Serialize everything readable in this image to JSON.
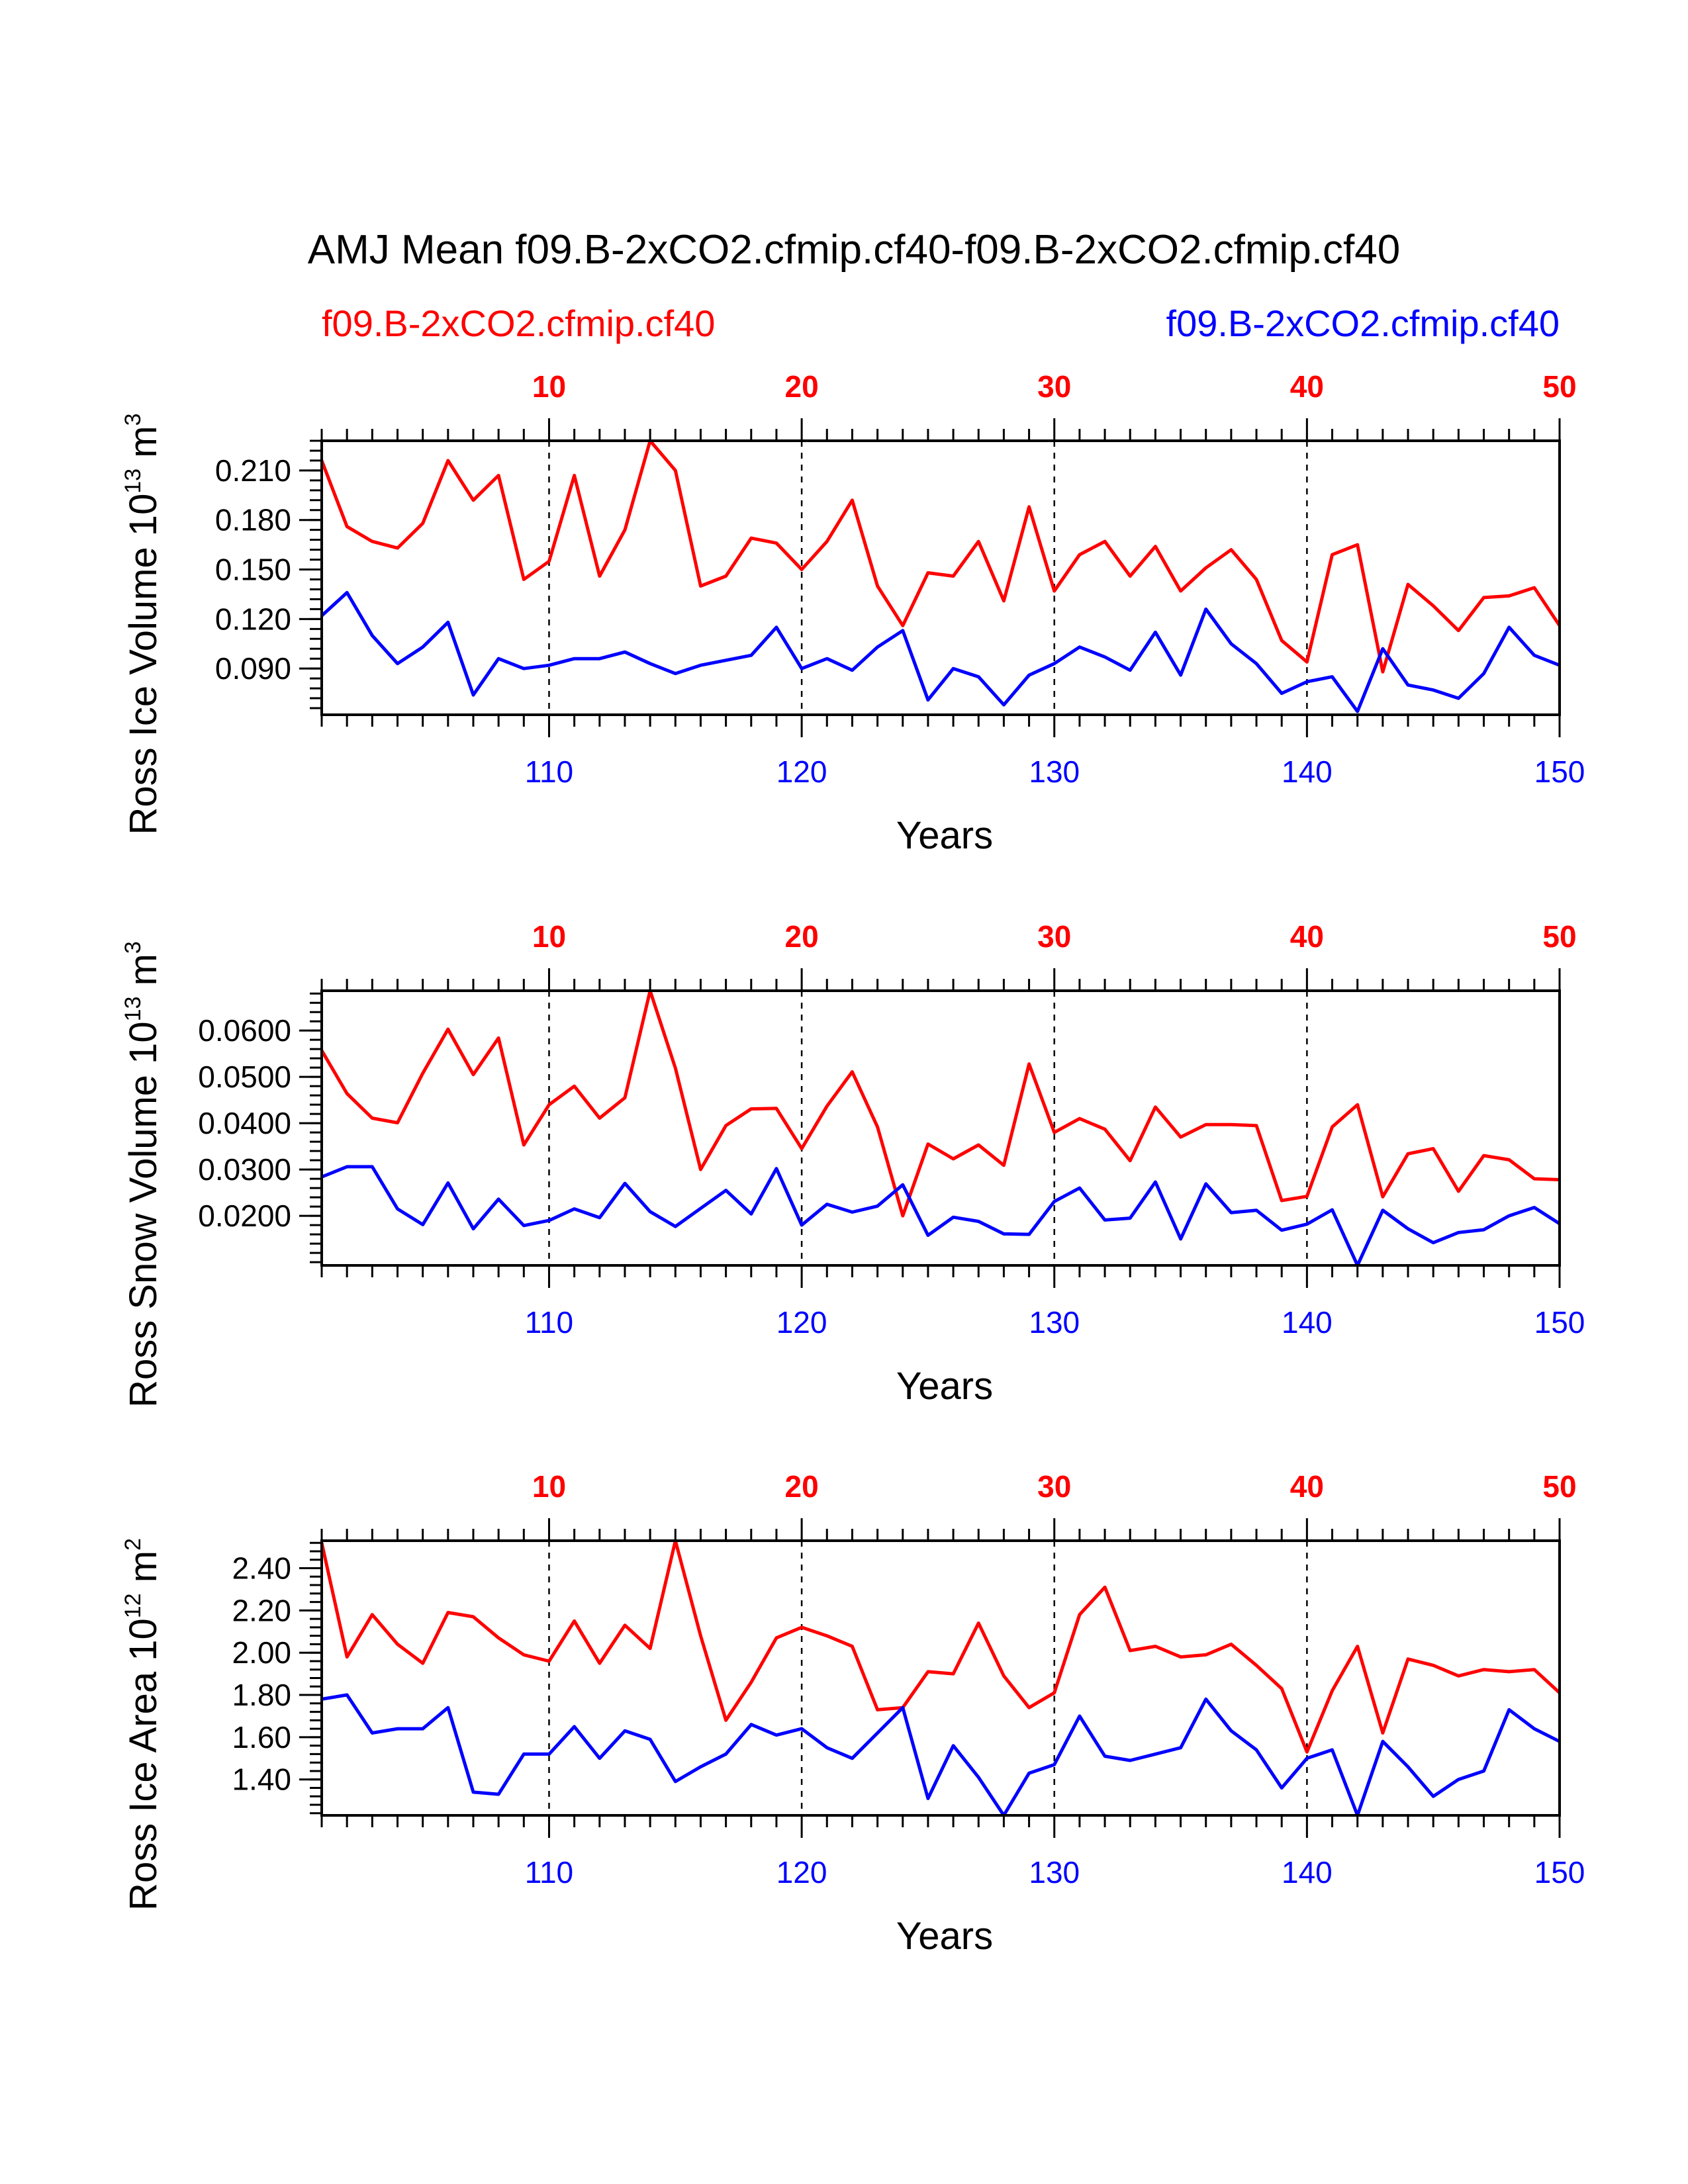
{
  "title": "AMJ Mean f09.B-2xCO2.cfmip.cf40-f09.B-2xCO2.cfmip.cf40",
  "legend": {
    "red_label": "f09.B-2xCO2.cfmip.cf40",
    "blue_label": "f09.B-2xCO2.cfmip.cf40"
  },
  "colors": {
    "red": "#ff0000",
    "blue": "#0000ff",
    "axis": "#000000"
  },
  "chart_data": [
    {
      "type": "line",
      "id": "ice-volume",
      "ylabel": "Ross Ice Volume 10",
      "ylabel_exp": "13",
      "ylabel_unit": " m",
      "ylabel_unit_exp": "3",
      "xlabel": "Years",
      "ylim": [
        0.062,
        0.228
      ],
      "yticks": [
        0.09,
        0.12,
        0.15,
        0.18,
        0.21
      ],
      "ytick_labels": [
        "0.090",
        "0.120",
        "0.150",
        "0.180",
        "0.210"
      ],
      "yminor_step": 0.006,
      "top_axis": {
        "range": [
          1,
          50
        ],
        "ticks": [
          10,
          20,
          30,
          40,
          50
        ],
        "labels": [
          "10",
          "20",
          "30",
          "40",
          "50"
        ]
      },
      "bottom_axis": {
        "range": [
          101,
          150
        ],
        "ticks": [
          110,
          120,
          130,
          140,
          150
        ],
        "labels": [
          "110",
          "120",
          "130",
          "140",
          "150"
        ]
      },
      "grid_x": [
        10,
        20,
        30,
        40
      ],
      "series": [
        {
          "name": "f09.B-2xCO2.cfmip.cf40",
          "axis": "top",
          "color": "red",
          "values": [
            0.216,
            0.176,
            0.167,
            0.163,
            0.178,
            0.216,
            0.192,
            0.207,
            0.144,
            0.155,
            0.207,
            0.146,
            0.174,
            0.228,
            0.21,
            0.14,
            0.146,
            0.169,
            0.166,
            0.15,
            0.167,
            0.192,
            0.14,
            0.116,
            0.148,
            0.146,
            0.167,
            0.131,
            0.188,
            0.137,
            0.159,
            0.167,
            0.146,
            0.164,
            0.137,
            0.151,
            0.162,
            0.144,
            0.107,
            0.094,
            0.159,
            0.165,
            0.088,
            0.141,
            0.128,
            0.113,
            0.133,
            0.134,
            0.139,
            0.116
          ]
        },
        {
          "name": "f09.B-2xCO2.cfmip.cf40",
          "axis": "bottom",
          "color": "blue",
          "values": [
            0.122,
            0.136,
            0.11,
            0.093,
            0.103,
            0.118,
            0.074,
            0.096,
            0.09,
            0.092,
            0.096,
            0.096,
            0.1,
            0.093,
            0.087,
            0.092,
            0.095,
            0.098,
            0.115,
            0.09,
            0.096,
            0.089,
            0.103,
            0.113,
            0.071,
            0.09,
            0.085,
            0.068,
            0.086,
            0.093,
            0.103,
            0.097,
            0.089,
            0.112,
            0.086,
            0.126,
            0.105,
            0.093,
            0.075,
            0.082,
            0.085,
            0.064,
            0.102,
            0.08,
            0.077,
            0.072,
            0.087,
            0.115,
            0.098,
            0.092
          ]
        }
      ]
    },
    {
      "type": "line",
      "id": "snow-volume",
      "ylabel": "Ross Snow Volume 10",
      "ylabel_exp": "13",
      "ylabel_unit": " m",
      "ylabel_unit_exp": "3",
      "xlabel": "Years",
      "ylim": [
        0.0093,
        0.0686
      ],
      "yticks": [
        0.02,
        0.03,
        0.04,
        0.05,
        0.06
      ],
      "ytick_labels": [
        "0.0200",
        "0.0300",
        "0.0400",
        "0.0500",
        "0.0600"
      ],
      "yminor_step": 0.002,
      "top_axis": {
        "range": [
          1,
          50
        ],
        "ticks": [
          10,
          20,
          30,
          40,
          50
        ],
        "labels": [
          "10",
          "20",
          "30",
          "40",
          "50"
        ]
      },
      "bottom_axis": {
        "range": [
          101,
          150
        ],
        "ticks": [
          110,
          120,
          130,
          140,
          150
        ],
        "labels": [
          "110",
          "120",
          "130",
          "140",
          "150"
        ]
      },
      "grid_x": [
        10,
        20,
        30,
        40
      ],
      "series": [
        {
          "name": "f09.B-2xCO2.cfmip.cf40",
          "axis": "top",
          "color": "red",
          "values": [
            0.0557,
            0.0464,
            0.0411,
            0.0401,
            0.0508,
            0.0603,
            0.0505,
            0.0584,
            0.0353,
            0.044,
            0.048,
            0.0411,
            0.0455,
            0.0686,
            0.0519,
            0.03,
            0.0395,
            0.0431,
            0.0432,
            0.0345,
            0.0437,
            0.0511,
            0.0392,
            0.02,
            0.0355,
            0.0323,
            0.0353,
            0.0309,
            0.0528,
            0.038,
            0.041,
            0.0387,
            0.0319,
            0.0435,
            0.037,
            0.0397,
            0.0397,
            0.0395,
            0.0233,
            0.0242,
            0.0392,
            0.044,
            0.0241,
            0.0334,
            0.0345,
            0.0253,
            0.033,
            0.0321,
            0.028,
            0.0278
          ]
        },
        {
          "name": "f09.B-2xCO2.cfmip.cf40",
          "axis": "bottom",
          "color": "blue",
          "values": [
            0.0284,
            0.0306,
            0.0306,
            0.0215,
            0.0181,
            0.0271,
            0.0172,
            0.0236,
            0.0179,
            0.019,
            0.0215,
            0.0196,
            0.027,
            0.0209,
            0.0177,
            0.0216,
            0.0255,
            0.0204,
            0.0302,
            0.018,
            0.0225,
            0.0208,
            0.0221,
            0.0267,
            0.0158,
            0.0197,
            0.0188,
            0.0161,
            0.016,
            0.0231,
            0.026,
            0.0191,
            0.0195,
            0.0273,
            0.015,
            0.0269,
            0.0207,
            0.0212,
            0.0169,
            0.0182,
            0.0213,
            0.0093,
            0.0212,
            0.0172,
            0.0142,
            0.0164,
            0.017,
            0.02,
            0.0218,
            0.0183
          ]
        }
      ]
    },
    {
      "type": "line",
      "id": "ice-area",
      "ylabel": "Ross Ice Area 10",
      "ylabel_exp": "12",
      "ylabel_unit": " m",
      "ylabel_unit_exp": "2",
      "xlabel": "Years",
      "ylim": [
        1.23,
        2.53
      ],
      "yticks": [
        1.4,
        1.6,
        1.8,
        2.0,
        2.2,
        2.4
      ],
      "ytick_labels": [
        "1.40",
        "1.60",
        "1.80",
        "2.00",
        "2.20",
        "2.40"
      ],
      "yminor_step": 0.04,
      "top_axis": {
        "range": [
          1,
          50
        ],
        "ticks": [
          10,
          20,
          30,
          40,
          50
        ],
        "labels": [
          "10",
          "20",
          "30",
          "40",
          "50"
        ]
      },
      "bottom_axis": {
        "range": [
          101,
          150
        ],
        "ticks": [
          110,
          120,
          130,
          140,
          150
        ],
        "labels": [
          "110",
          "120",
          "130",
          "140",
          "150"
        ]
      },
      "grid_x": [
        10,
        20,
        30,
        40
      ],
      "series": [
        {
          "name": "f09.B-2xCO2.cfmip.cf40",
          "axis": "top",
          "color": "red",
          "values": [
            2.52,
            1.98,
            2.18,
            2.04,
            1.95,
            2.19,
            2.17,
            2.07,
            1.99,
            1.96,
            2.15,
            1.95,
            2.13,
            2.02,
            2.53,
            2.08,
            1.68,
            1.86,
            2.07,
            2.12,
            2.08,
            2.03,
            1.73,
            1.74,
            1.91,
            1.9,
            2.14,
            1.89,
            1.74,
            1.81,
            2.18,
            2.31,
            2.01,
            2.03,
            1.98,
            1.99,
            2.04,
            1.94,
            1.83,
            1.53,
            1.82,
            2.03,
            1.62,
            1.97,
            1.94,
            1.89,
            1.92,
            1.91,
            1.92,
            1.81
          ]
        },
        {
          "name": "f09.B-2xCO2.cfmip.cf40",
          "axis": "bottom",
          "color": "blue",
          "values": [
            1.78,
            1.8,
            1.62,
            1.64,
            1.64,
            1.74,
            1.34,
            1.33,
            1.52,
            1.52,
            1.65,
            1.5,
            1.63,
            1.59,
            1.39,
            1.46,
            1.52,
            1.66,
            1.61,
            1.64,
            1.55,
            1.5,
            1.62,
            1.74,
            1.31,
            1.56,
            1.41,
            1.23,
            1.43,
            1.47,
            1.7,
            1.51,
            1.49,
            1.52,
            1.55,
            1.78,
            1.63,
            1.54,
            1.36,
            1.5,
            1.54,
            1.23,
            1.58,
            1.46,
            1.32,
            1.4,
            1.44,
            1.73,
            1.64,
            1.58
          ]
        }
      ]
    }
  ]
}
